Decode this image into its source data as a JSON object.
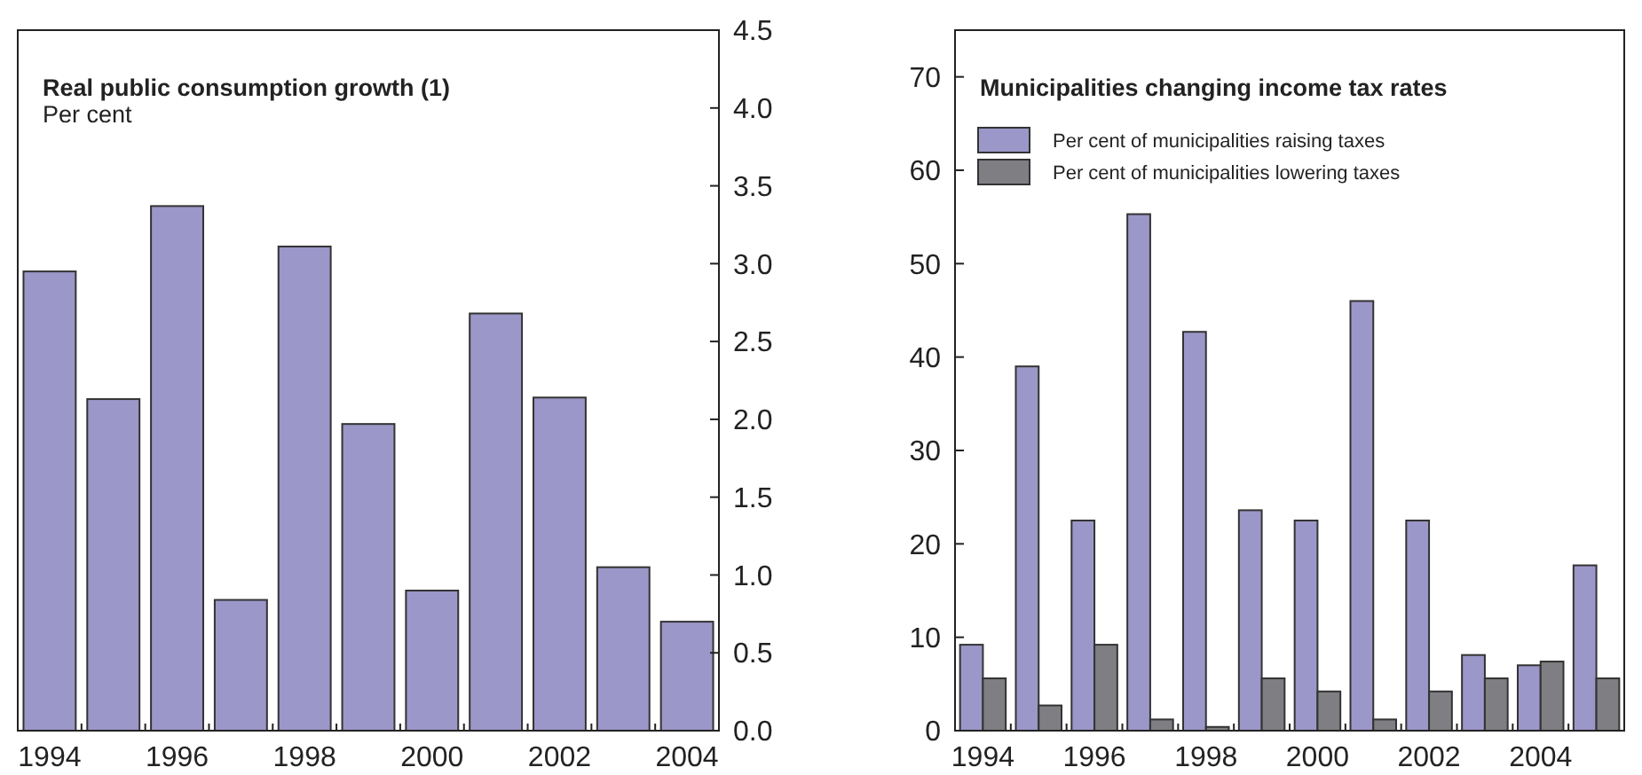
{
  "chart_data": [
    {
      "type": "bar",
      "title": "Real public consumption growth (1)",
      "subtitle": "Per cent",
      "categories": [
        "1994",
        null,
        "1996",
        null,
        "1998",
        null,
        "2000",
        null,
        "2002",
        null,
        "2004"
      ],
      "values": [
        2.95,
        2.13,
        3.37,
        0.84,
        3.11,
        1.97,
        0.9,
        2.68,
        2.14,
        1.05,
        0.7
      ],
      "color": "#9b97c8",
      "ylim": [
        0,
        4.5
      ],
      "yticks": [
        {
          "value": 0,
          "label": "0.0"
        },
        0.5,
        {
          "value": 1,
          "label": "1.0"
        },
        1.5,
        {
          "value": 2,
          "label": "2.0"
        },
        2.5,
        {
          "value": 3,
          "label": "3.0"
        },
        3.5,
        {
          "value": 4,
          "label": "4.0"
        },
        4.5
      ],
      "grid": false,
      "legend": false
    },
    {
      "type": "bar",
      "title": "Municipalities changing income tax rates",
      "categories": [
        "1994",
        null,
        "1996",
        null,
        "1998",
        null,
        "2000",
        null,
        "2002",
        null,
        "2004",
        null
      ],
      "series": [
        {
          "name": "Per cent of municipalities raising taxes",
          "color": "#9b97c8",
          "values": [
            9.2,
            39,
            22.5,
            55.3,
            42.7,
            23.6,
            22.5,
            46,
            22.5,
            8.1,
            7,
            17.7
          ]
        },
        {
          "name": "Per cent of municipalities lowering taxes",
          "color": "#7f7f83",
          "values": [
            5.6,
            2.7,
            9.2,
            1.2,
            0.4,
            5.6,
            4.2,
            1.2,
            4.2,
            5.6,
            7.4,
            5.6
          ]
        }
      ],
      "ylim": [
        0,
        75
      ],
      "yticks": [
        0,
        10,
        20,
        30,
        40,
        50,
        60,
        70
      ],
      "grid": false,
      "legend": "top left"
    }
  ]
}
